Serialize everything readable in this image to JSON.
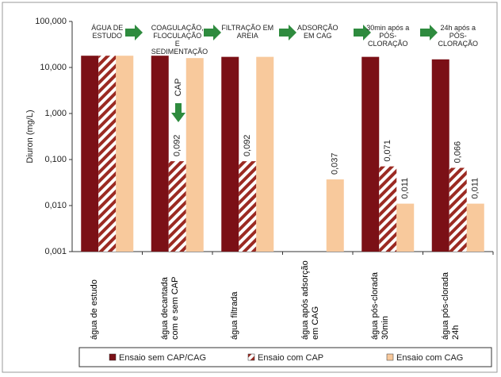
{
  "chart_data": {
    "type": "bar",
    "y_label": "Diuron (mg/L)",
    "log_scale": true,
    "ylim": [
      0.001,
      100
    ],
    "yticks": [
      {
        "value": 0.001,
        "label": "0,001"
      },
      {
        "value": 0.01,
        "label": "0,010"
      },
      {
        "value": 0.1,
        "label": "0,100"
      },
      {
        "value": 1,
        "label": "1,000"
      },
      {
        "value": 10,
        "label": "10,000"
      },
      {
        "value": 100,
        "label": "100,000"
      }
    ],
    "grid": false,
    "legend": "bottom",
    "categories": [
      "água de estudo",
      "água decantada com e sem CAP",
      "água filtrada",
      "água após adsorção em CAG",
      "água pós-clorada 30min",
      "água pós-clorada 24h"
    ],
    "series": [
      {
        "name": "Ensaio sem CAP/CAG",
        "color": "#7b1016",
        "hatch": false,
        "values": [
          18,
          18,
          17,
          null,
          17,
          15
        ],
        "value_labels": [
          null,
          null,
          null,
          null,
          null,
          null
        ]
      },
      {
        "name": "Ensaio com CAP",
        "color": "#9b2a22",
        "hatch": true,
        "values": [
          18,
          0.092,
          0.092,
          null,
          0.071,
          0.066
        ],
        "value_labels": [
          null,
          "0,092",
          "0,092",
          null,
          "0,071",
          "0,066"
        ]
      },
      {
        "name": "Ensaio com CAG",
        "color": "#f8c99c",
        "hatch": false,
        "values": [
          18,
          16,
          17,
          0.037,
          0.011,
          0.011
        ],
        "value_labels": [
          null,
          null,
          null,
          "0,037",
          "0,011",
          "0,011"
        ]
      }
    ],
    "steps": [
      "ÁGUA DE ESTUDO",
      "COAGULAÇÃO, FLOCULAÇÃO E SEDIMENTAÇÃO",
      "FILTRAÇÃO EM AREIA",
      "ADSORÇÃO EM CAG",
      "30min após a PÓS-CLORAÇÃO",
      "24h após a PÓS-CLORAÇÃO"
    ],
    "cap_label": "CAP"
  }
}
